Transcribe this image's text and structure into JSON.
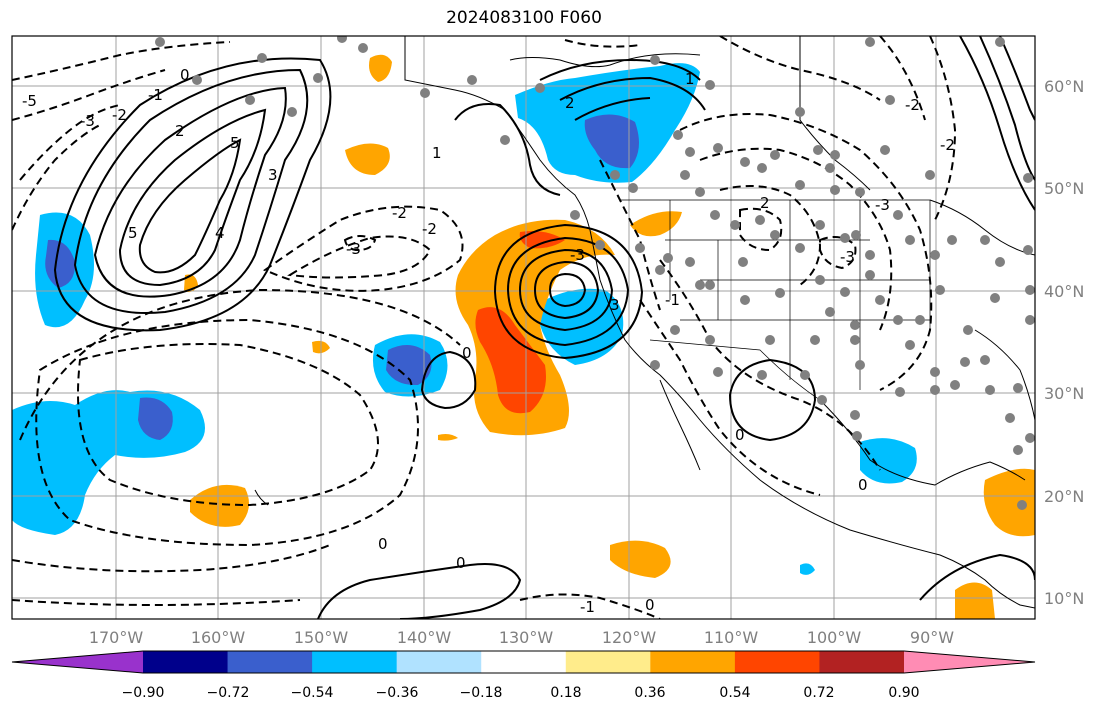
{
  "title": "2024083100 F060",
  "map": {
    "lon_labels": [
      "170°W",
      "160°W",
      "150°W",
      "140°W",
      "130°W",
      "120°W",
      "110°W",
      "100°W",
      "90°W"
    ],
    "lat_labels": [
      "60°N",
      "50°N",
      "40°N",
      "30°N",
      "20°N",
      "10°N"
    ],
    "contour_labels": [
      "-5",
      "-3",
      "-2",
      "-1",
      "0",
      "5",
      "4",
      "3",
      "2",
      "1",
      "-2",
      "-3",
      "-2",
      "1",
      "2",
      "-3",
      "3",
      "-3",
      "-2",
      "0",
      "0",
      "0",
      "0",
      "-1",
      "0",
      "0",
      "2",
      "-1",
      "-3",
      "-2",
      "5"
    ],
    "shading_colors": {
      "purple": "#9932cc",
      "navy": "#00008b",
      "blue": "#3a5fcd",
      "deepskyblue": "#00bfff",
      "lightblue": "#b0e2ff",
      "white": "#ffffff",
      "yellow": "#ffec8b",
      "orange": "#ffa500",
      "orangered": "#ff4500",
      "firebrick": "#b22222",
      "pink": "#ff8cb4"
    },
    "station_color": "#808080"
  },
  "colorbar": {
    "tick_labels": [
      "−0.90",
      "−0.72",
      "−0.54",
      "−0.36",
      "−0.18",
      "0.18",
      "0.36",
      "0.54",
      "0.72",
      "0.90"
    ],
    "colors": [
      "#9932cc",
      "#00008b",
      "#3a5fcd",
      "#00bfff",
      "#b0e2ff",
      "#ffffff",
      "#ffec8b",
      "#ffa500",
      "#ff4500",
      "#b22222",
      "#ff8cb4"
    ]
  }
}
